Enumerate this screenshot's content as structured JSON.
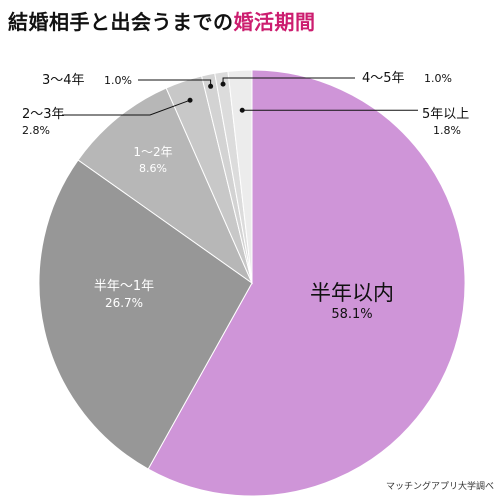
{
  "title": {
    "main": "結婚相手と出会うまでの",
    "highlight": "婚活期間"
  },
  "colors": {
    "title_highlight": "#cc1d6f",
    "leader": "#111111"
  },
  "chart_data": {
    "type": "pie",
    "title": "結婚相手と出会うまでの婚活期間",
    "start_angle": "12 o'clock, clockwise",
    "slices": [
      {
        "label": "半年以内",
        "value": 58.1,
        "display": "58.1%",
        "color": "#cf95d8",
        "text_color": "#111111"
      },
      {
        "label": "半年〜1年",
        "value": 26.7,
        "display": "26.7%",
        "color": "#979797",
        "text_color": "#ffffff"
      },
      {
        "label": "1〜2年",
        "value": 8.6,
        "display": "8.6%",
        "color": "#b7b7b7",
        "text_color": "#ffffff"
      },
      {
        "label": "2〜3年",
        "value": 2.8,
        "display": "2.8%",
        "color": "#c8c8c8",
        "text_color": "#111111"
      },
      {
        "label": "3〜4年",
        "value": 1.0,
        "display": "1.0%",
        "color": "#d3d3d3",
        "text_color": "#111111"
      },
      {
        "label": "4〜5年",
        "value": 1.0,
        "display": "1.0%",
        "color": "#dcdcdc",
        "text_color": "#111111"
      },
      {
        "label": "5年以上",
        "value": 1.8,
        "display": "1.8%",
        "color": "#ececec",
        "text_color": "#111111"
      }
    ]
  },
  "source": "マッチングアプリ大学調べ"
}
